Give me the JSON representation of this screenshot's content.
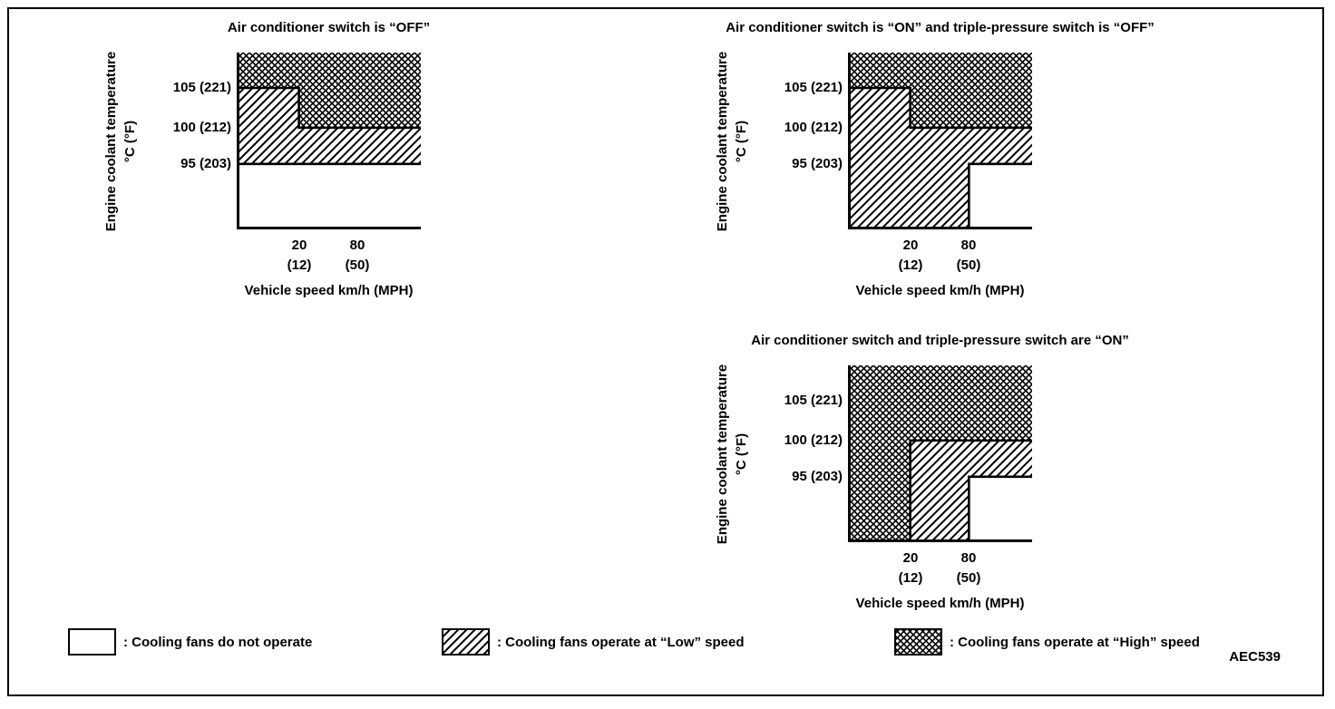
{
  "doc_code": "AEC539",
  "chart_data": [
    {
      "type": "area",
      "title": "Air conditioner switch is “OFF”",
      "xlabel": "Vehicle speed km/h (MPH)",
      "ylabel": "Engine coolant temperature",
      "ylabel_units": "°C (°F)",
      "x_ticks": [
        {
          "value": 20,
          "label": "20",
          "sublabel": "(12)"
        },
        {
          "value": 80,
          "label": "80",
          "sublabel": "(50)"
        }
      ],
      "y_ticks": [
        {
          "value": 105,
          "label": "105 (221)"
        },
        {
          "value": 100,
          "label": "100 (212)"
        },
        {
          "value": 95,
          "label": "95 (203)"
        }
      ],
      "regions": [
        {
          "zone": "high",
          "x": [
            "min",
            20
          ],
          "temp": [
            "max",
            105
          ]
        },
        {
          "zone": "high",
          "x": [
            20,
            "max"
          ],
          "temp": [
            "max",
            100
          ]
        },
        {
          "zone": "low",
          "x": [
            "min",
            20
          ],
          "temp": [
            105,
            95
          ]
        },
        {
          "zone": "low",
          "x": [
            20,
            "max"
          ],
          "temp": [
            100,
            95
          ]
        },
        {
          "zone": "off",
          "x": [
            "min",
            "max"
          ],
          "temp": [
            95,
            "min"
          ]
        }
      ],
      "boundaries": [
        [
          [
            "min",
            105
          ],
          [
            20,
            105
          ],
          [
            20,
            100
          ],
          [
            "max",
            100
          ]
        ],
        [
          [
            "min",
            95
          ],
          [
            "max",
            95
          ]
        ]
      ]
    },
    {
      "type": "area",
      "title": "Air conditioner switch is “ON” and triple-pressure switch is “OFF”",
      "xlabel": "Vehicle speed km/h (MPH)",
      "ylabel": "Engine coolant temperature",
      "ylabel_units": "°C (°F)",
      "x_ticks": [
        {
          "value": 20,
          "label": "20",
          "sublabel": "(12)"
        },
        {
          "value": 80,
          "label": "80",
          "sublabel": "(50)"
        }
      ],
      "y_ticks": [
        {
          "value": 105,
          "label": "105 (221)"
        },
        {
          "value": 100,
          "label": "100 (212)"
        },
        {
          "value": 95,
          "label": "95 (203)"
        }
      ],
      "regions": [
        {
          "zone": "high",
          "x": [
            "min",
            20
          ],
          "temp": [
            "max",
            105
          ]
        },
        {
          "zone": "high",
          "x": [
            20,
            "max"
          ],
          "temp": [
            "max",
            100
          ]
        },
        {
          "zone": "low",
          "x": [
            "min",
            20
          ],
          "temp": [
            105,
            "min"
          ]
        },
        {
          "zone": "low",
          "x": [
            20,
            80
          ],
          "temp": [
            100,
            "min"
          ]
        },
        {
          "zone": "low",
          "x": [
            80,
            "max"
          ],
          "temp": [
            100,
            95
          ]
        },
        {
          "zone": "off",
          "x": [
            80,
            "max"
          ],
          "temp": [
            95,
            "min"
          ]
        }
      ],
      "boundaries": [
        [
          [
            "min",
            105
          ],
          [
            20,
            105
          ],
          [
            20,
            100
          ],
          [
            "max",
            100
          ]
        ],
        [
          [
            80,
            "min"
          ],
          [
            80,
            95
          ],
          [
            "max",
            95
          ]
        ]
      ]
    },
    {
      "type": "area",
      "title": "Air conditioner switch and triple-pressure switch are “ON”",
      "xlabel": "Vehicle speed km/h (MPH)",
      "ylabel": "Engine coolant temperature",
      "ylabel_units": "°C (°F)",
      "x_ticks": [
        {
          "value": 20,
          "label": "20",
          "sublabel": "(12)"
        },
        {
          "value": 80,
          "label": "80",
          "sublabel": "(50)"
        }
      ],
      "y_ticks": [
        {
          "value": 105,
          "label": "105 (221)"
        },
        {
          "value": 100,
          "label": "100 (212)"
        },
        {
          "value": 95,
          "label": "95 (203)"
        }
      ],
      "regions": [
        {
          "zone": "high",
          "x": [
            "min",
            "max"
          ],
          "temp": [
            "max",
            100
          ]
        },
        {
          "zone": "high",
          "x": [
            "min",
            20
          ],
          "temp": [
            100,
            "min"
          ]
        },
        {
          "zone": "low",
          "x": [
            20,
            80
          ],
          "temp": [
            100,
            "min"
          ]
        },
        {
          "zone": "low",
          "x": [
            80,
            "max"
          ],
          "temp": [
            100,
            95
          ]
        },
        {
          "zone": "off",
          "x": [
            80,
            "max"
          ],
          "temp": [
            95,
            "min"
          ]
        }
      ],
      "boundaries": [
        [
          [
            20,
            "min"
          ],
          [
            20,
            100
          ],
          [
            "max",
            100
          ]
        ],
        [
          [
            80,
            "min"
          ],
          [
            80,
            95
          ],
          [
            "max",
            95
          ]
        ]
      ]
    }
  ],
  "legend": [
    {
      "zone": "off",
      "label": ": Cooling fans do not operate"
    },
    {
      "zone": "low",
      "label": ": Cooling fans operate at “Low” speed"
    },
    {
      "zone": "high",
      "label": ": Cooling fans operate at “High” speed"
    }
  ]
}
